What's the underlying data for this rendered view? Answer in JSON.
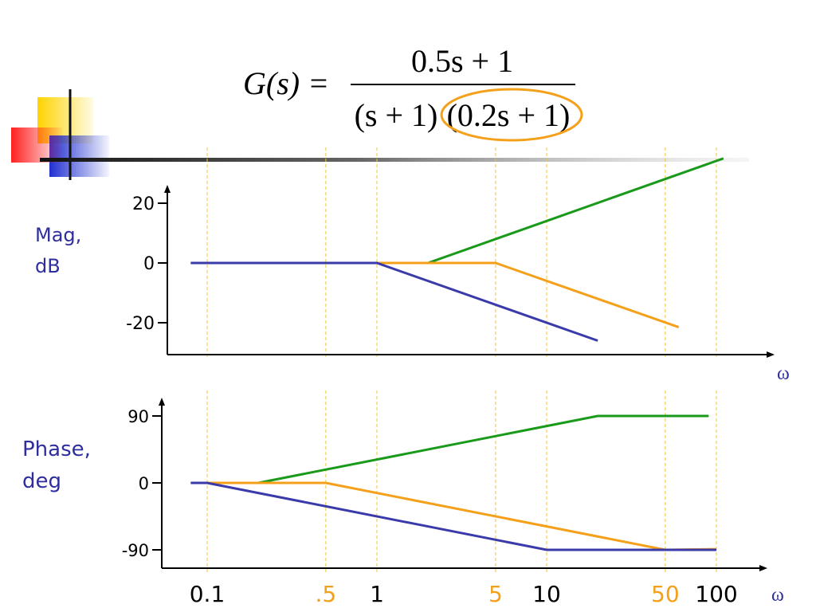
{
  "formula": {
    "lhs": "G(s) =",
    "numerator": "0.5s + 1",
    "denominator_left": "(s + 1)",
    "denominator_right": "(0.2s + 1)"
  },
  "colors": {
    "green": "#1a9a1a",
    "orange": "#f5a01a",
    "blue": "#3a3aaa",
    "label": "#2e2e9e",
    "grid": "#f5c430",
    "axis": "#000000",
    "deco_yellow": "#ffd400",
    "deco_red": "#ff2020",
    "deco_blue": "#2030d0"
  },
  "chart_data": [
    {
      "type": "line",
      "ylabel": "Mag, dB",
      "ylabel_lines": [
        "Mag,",
        "dB"
      ],
      "xlabel": "ω",
      "x_scale": "log",
      "yticks": [
        {
          "value": 20,
          "label": "20"
        },
        {
          "value": 0,
          "label": "0"
        },
        {
          "value": -20,
          "label": "-20"
        }
      ],
      "gridlines_x": [
        0.1,
        0.5,
        1,
        5,
        10,
        50,
        100
      ],
      "series": [
        {
          "color_key": "green",
          "points": [
            [
              0.08,
              0
            ],
            [
              2,
              0
            ],
            [
              110,
              35
            ]
          ]
        },
        {
          "color_key": "orange",
          "points": [
            [
              0.08,
              0
            ],
            [
              5,
              0
            ],
            [
              60,
              -21.5
            ]
          ]
        },
        {
          "color_key": "blue",
          "points": [
            [
              0.08,
              0
            ],
            [
              1,
              0
            ],
            [
              20,
              -26
            ]
          ]
        }
      ]
    },
    {
      "type": "line",
      "ylabel": "Phase, deg",
      "ylabel_lines": [
        "Phase,",
        "deg"
      ],
      "xlabel": "ω",
      "x_scale": "log",
      "yticks": [
        {
          "value": 90,
          "label": "90"
        },
        {
          "value": 0,
          "label": "0"
        },
        {
          "value": -90,
          "label": "-90"
        }
      ],
      "xticks": [
        {
          "value": 0.1,
          "label": "0.1",
          "color_key": "axis"
        },
        {
          "value": 0.5,
          "label": ".5",
          "color_key": "orange"
        },
        {
          "value": 1,
          "label": "1",
          "color_key": "axis"
        },
        {
          "value": 5,
          "label": "5",
          "color_key": "orange"
        },
        {
          "value": 10,
          "label": "10",
          "color_key": "axis"
        },
        {
          "value": 50,
          "label": "50",
          "color_key": "orange"
        },
        {
          "value": 100,
          "label": "100",
          "color_key": "axis"
        }
      ],
      "series": [
        {
          "color_key": "green",
          "points": [
            [
              0.08,
              0
            ],
            [
              0.2,
              0
            ],
            [
              20,
              90
            ],
            [
              90,
              90
            ]
          ]
        },
        {
          "color_key": "orange",
          "points": [
            [
              0.08,
              0
            ],
            [
              0.5,
              0
            ],
            [
              50,
              -90
            ],
            [
              100,
              -89
            ]
          ]
        },
        {
          "color_key": "blue",
          "points": [
            [
              0.08,
              0
            ],
            [
              0.1,
              0
            ],
            [
              10,
              -90
            ],
            [
              100,
              -90
            ]
          ]
        }
      ]
    }
  ]
}
